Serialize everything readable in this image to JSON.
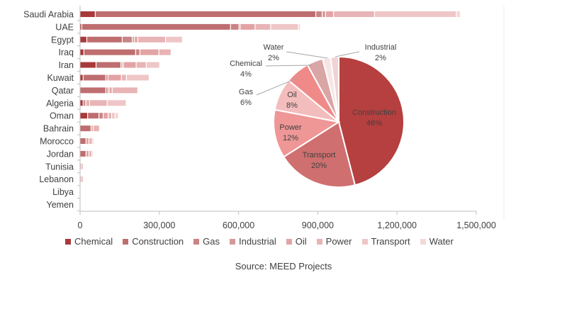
{
  "chart_data": [
    {
      "type": "bar",
      "orientation": "horizontal",
      "stacked": true,
      "categories": [
        "Saudi Arabia",
        "UAE",
        "Egypt",
        "Iraq",
        "Iran",
        "Kuwait",
        "Qatar",
        "Algeria",
        "Oman",
        "Bahrain",
        "Morocco",
        "Jordan",
        "Tunisia",
        "Lebanon",
        "Libya",
        "Yemen"
      ],
      "series": [
        {
          "name": "Chemical",
          "color": "#a8393b",
          "values": [
            59000,
            8000,
            27000,
            16000,
            62000,
            13000,
            0,
            13000,
            30000,
            0,
            0,
            0,
            0,
            0,
            0,
            0
          ]
        },
        {
          "name": "Construction",
          "color": "#bf6e70",
          "values": [
            835000,
            563000,
            134000,
            196000,
            94000,
            86000,
            99000,
            8000,
            43000,
            43000,
            24000,
            24000,
            5000,
            5000,
            0,
            0
          ]
        },
        {
          "name": "Gas",
          "color": "#c98486",
          "values": [
            24000,
            32000,
            38000,
            16000,
            5000,
            8000,
            8000,
            5000,
            16000,
            0,
            0,
            0,
            0,
            0,
            0,
            0
          ]
        },
        {
          "name": "Industrial",
          "color": "#d49a9b",
          "values": [
            13000,
            5000,
            8000,
            0,
            5000,
            0,
            5000,
            0,
            0,
            0,
            0,
            0,
            0,
            0,
            0,
            0
          ]
        },
        {
          "name": "Oil",
          "color": "#e3a3a4",
          "values": [
            30000,
            56000,
            13000,
            72000,
            48000,
            51000,
            11000,
            11000,
            19000,
            8000,
            11000,
            11000,
            0,
            0,
            0,
            0
          ]
        },
        {
          "name": "Power",
          "color": "#e8b4b5",
          "values": [
            155000,
            59000,
            105000,
            46000,
            38000,
            19000,
            97000,
            67000,
            13000,
            24000,
            13000,
            11000,
            8000,
            8000,
            0,
            0
          ]
        },
        {
          "name": "Transport",
          "color": "#efc6c7",
          "values": [
            310000,
            105000,
            64000,
            0,
            51000,
            86000,
            0,
            72000,
            13000,
            0,
            5000,
            0,
            0,
            0,
            0,
            0
          ]
        },
        {
          "name": "Water",
          "color": "#f3d8d8",
          "values": [
            16000,
            8000,
            0,
            0,
            0,
            0,
            0,
            0,
            13000,
            0,
            0,
            5000,
            0,
            0,
            0,
            0
          ]
        }
      ],
      "xlim": [
        0,
        1500000
      ],
      "xticks": [
        "0",
        "300,000",
        "600,000",
        "900,000",
        "1,200,000",
        "1,500,000"
      ],
      "xtick_values": [
        0,
        300000,
        600000,
        900000,
        1200000,
        1500000
      ],
      "grid": false,
      "legend": "bottom"
    },
    {
      "type": "pie",
      "slices": [
        {
          "name": "Construction",
          "value": 46,
          "label": "46%",
          "color": "#b5403f"
        },
        {
          "name": "Transport",
          "value": 20,
          "label": "20%",
          "color": "#cf6f6f"
        },
        {
          "name": "Power",
          "value": 12,
          "label": "12%",
          "color": "#ee9796"
        },
        {
          "name": "Oil",
          "value": 8,
          "label": "8%",
          "color": "#f4bdbd"
        },
        {
          "name": "Gas",
          "value": 6,
          "label": "6%",
          "color": "#f08a89"
        },
        {
          "name": "Chemical",
          "value": 4,
          "label": "4%",
          "color": "#d9a5a5"
        },
        {
          "name": "Water",
          "value": 2,
          "label": "2%",
          "color": "#f7e4e4"
        },
        {
          "name": "Industrial",
          "value": 2,
          "label": "2%",
          "color": "#f1d3d3"
        }
      ]
    }
  ],
  "legend": {
    "items": [
      {
        "label": "Chemical",
        "color": "#a8393b"
      },
      {
        "label": "Construction",
        "color": "#bf6e70"
      },
      {
        "label": "Gas",
        "color": "#c98486"
      },
      {
        "label": "Industrial",
        "color": "#d49a9b"
      },
      {
        "label": "Oil",
        "color": "#e3a3a4"
      },
      {
        "label": "Power",
        "color": "#e8b4b5"
      },
      {
        "label": "Transport",
        "color": "#efc6c7"
      },
      {
        "label": "Water",
        "color": "#f3d8d8"
      }
    ]
  },
  "source": "Source: MEED Projects"
}
